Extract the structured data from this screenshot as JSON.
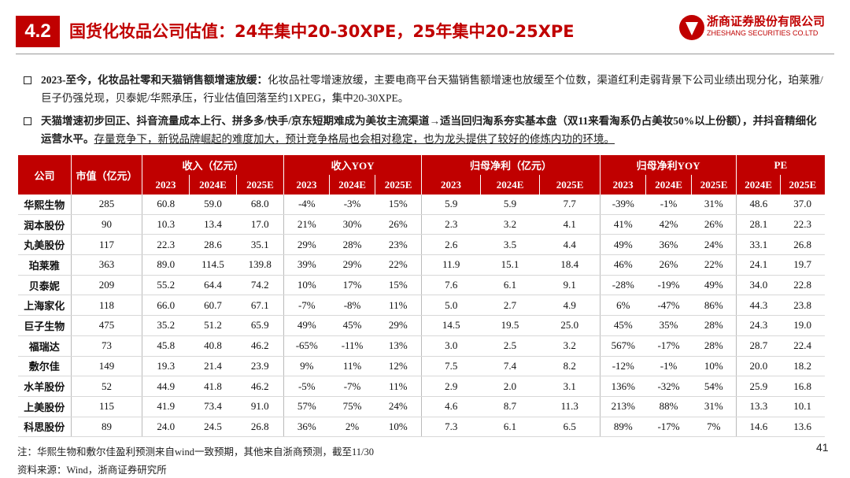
{
  "header": {
    "section": "4.2",
    "title": "国货化妆品公司估值：24年集中20-30XPE，25年集中20-25XPE",
    "logo_cn": "浙商证券股份有限公司",
    "logo_en": "ZHESHANG SECURITIES CO.LTD"
  },
  "bullets": [
    {
      "bold": "2023-至今，化妆品社零和天猫销售额增速放缓：",
      "text": "化妆品社零增速放缓，主要电商平台天猫销售额增速也放缓至个位数，渠道红利走弱背景下公司业绩出现分化，珀莱雅/巨子仍强兑现，贝泰妮/华熙承压，行业估值回落至约1XPEG，集中20-30XPE。"
    },
    {
      "bold": "天猫增速初步回正、抖音流量成本上行、拼多多/快手/京东短期难成为美妆主流渠道→适当回归淘系夯实基本盘（双11来看淘系仍占美妆50%以上份额），并抖音精细化运营水平。",
      "text": "存量竞争下，新锐品牌崛起的难度加大，预计竞争格局也会相对稳定，也为龙头提供了较好的修炼内功的环境。"
    }
  ],
  "table": {
    "columns": [
      "公司",
      "市值（亿元）"
    ],
    "groups": [
      {
        "label": "收入（亿元）",
        "years": [
          "2023",
          "2024E",
          "2025E"
        ]
      },
      {
        "label": "收入YOY",
        "years": [
          "2023",
          "2024E",
          "2025E"
        ]
      },
      {
        "label": "归母净利（亿元）",
        "years": [
          "2023",
          "2024E",
          "2025E"
        ]
      },
      {
        "label": "归母净利YOY",
        "years": [
          "2023",
          "2024E",
          "2025E"
        ]
      },
      {
        "label": "PE",
        "years": [
          "2024E",
          "2025E"
        ]
      }
    ],
    "rows": [
      [
        "华熙生物",
        "285",
        "60.8",
        "59.0",
        "68.0",
        "-4%",
        "-3%",
        "15%",
        "5.9",
        "5.9",
        "7.7",
        "-39%",
        "-1%",
        "31%",
        "48.6",
        "37.0"
      ],
      [
        "润本股份",
        "90",
        "10.3",
        "13.4",
        "17.0",
        "21%",
        "30%",
        "26%",
        "2.3",
        "3.2",
        "4.1",
        "41%",
        "42%",
        "26%",
        "28.1",
        "22.3"
      ],
      [
        "丸美股份",
        "117",
        "22.3",
        "28.6",
        "35.1",
        "29%",
        "28%",
        "23%",
        "2.6",
        "3.5",
        "4.4",
        "49%",
        "36%",
        "24%",
        "33.1",
        "26.8"
      ],
      [
        "珀莱雅",
        "363",
        "89.0",
        "114.5",
        "139.8",
        "39%",
        "29%",
        "22%",
        "11.9",
        "15.1",
        "18.4",
        "46%",
        "26%",
        "22%",
        "24.1",
        "19.7"
      ],
      [
        "贝泰妮",
        "209",
        "55.2",
        "64.4",
        "74.2",
        "10%",
        "17%",
        "15%",
        "7.6",
        "6.1",
        "9.1",
        "-28%",
        "-19%",
        "49%",
        "34.0",
        "22.8"
      ],
      [
        "上海家化",
        "118",
        "66.0",
        "60.7",
        "67.1",
        "-7%",
        "-8%",
        "11%",
        "5.0",
        "2.7",
        "4.9",
        "6%",
        "-47%",
        "86%",
        "44.3",
        "23.8"
      ],
      [
        "巨子生物",
        "475",
        "35.2",
        "51.2",
        "65.9",
        "49%",
        "45%",
        "29%",
        "14.5",
        "19.5",
        "25.0",
        "45%",
        "35%",
        "28%",
        "24.3",
        "19.0"
      ],
      [
        "福瑞达",
        "73",
        "45.8",
        "40.8",
        "46.2",
        "-65%",
        "-11%",
        "13%",
        "3.0",
        "2.5",
        "3.2",
        "567%",
        "-17%",
        "28%",
        "28.7",
        "22.4"
      ],
      [
        "敷尔佳",
        "149",
        "19.3",
        "21.4",
        "23.9",
        "9%",
        "11%",
        "12%",
        "7.5",
        "7.4",
        "8.2",
        "-12%",
        "-1%",
        "10%",
        "20.0",
        "18.2"
      ],
      [
        "水羊股份",
        "52",
        "44.9",
        "41.8",
        "46.2",
        "-5%",
        "-7%",
        "11%",
        "2.9",
        "2.0",
        "3.1",
        "136%",
        "-32%",
        "54%",
        "25.9",
        "16.8"
      ],
      [
        "上美股份",
        "115",
        "41.9",
        "73.4",
        "91.0",
        "57%",
        "75%",
        "24%",
        "4.6",
        "8.7",
        "11.3",
        "213%",
        "88%",
        "31%",
        "13.3",
        "10.1"
      ],
      [
        "科思股份",
        "89",
        "24.0",
        "24.5",
        "26.8",
        "36%",
        "2%",
        "10%",
        "7.3",
        "6.1",
        "6.5",
        "89%",
        "-17%",
        "7%",
        "14.6",
        "13.6"
      ]
    ]
  },
  "footer": {
    "note": "注：华熙生物和敷尔佳盈利预测来自wind一致预期，其他来自浙商预测，截至11/30",
    "source": "资料来源：Wind，浙商证券研究所",
    "page": "41"
  }
}
